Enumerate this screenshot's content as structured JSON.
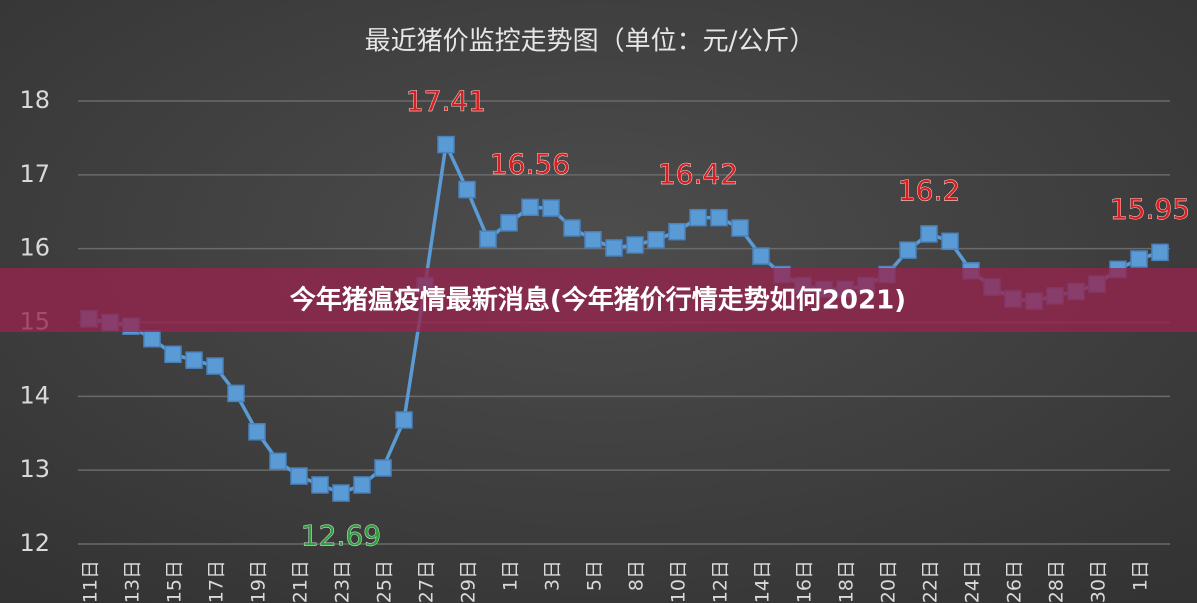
{
  "chart_data": {
    "type": "line",
    "title": "最近猪价监控走势图（单位：元/公斤）",
    "banner": "今年猪瘟疫情最新消息(今年猪价行情走势如何2021)",
    "categories": [
      "11日",
      null,
      "13日",
      null,
      "15日",
      null,
      "17日",
      null,
      "19日",
      null,
      "21日",
      null,
      "23日",
      null,
      "25日",
      null,
      "27日",
      null,
      "29日",
      null,
      "1日",
      null,
      "3日",
      null,
      "5日",
      null,
      "8日",
      null,
      "10日",
      null,
      "12日",
      null,
      "14日",
      null,
      "16日",
      null,
      "18日",
      null,
      "20日",
      null,
      "22日",
      null,
      "24日",
      null,
      "26日",
      null,
      "28日",
      null,
      "30日",
      null,
      "1日",
      null
    ],
    "values": [
      15.05,
      15.0,
      14.95,
      14.78,
      14.57,
      14.49,
      14.41,
      14.04,
      13.52,
      13.12,
      12.92,
      12.8,
      12.69,
      12.8,
      13.03,
      13.68,
      15.5,
      17.41,
      16.8,
      16.13,
      16.35,
      16.56,
      16.55,
      16.28,
      16.12,
      16.01,
      16.05,
      16.12,
      16.23,
      16.42,
      16.42,
      16.28,
      15.9,
      15.65,
      15.5,
      15.45,
      15.45,
      15.5,
      15.65,
      15.98,
      16.2,
      16.1,
      15.7,
      15.48,
      15.32,
      15.29,
      15.36,
      15.42,
      15.52,
      15.72,
      15.86,
      15.95
    ],
    "value_labels": [
      null,
      null,
      null,
      null,
      null,
      null,
      null,
      null,
      null,
      null,
      null,
      null,
      "12.69",
      null,
      null,
      null,
      null,
      "17.41",
      null,
      null,
      null,
      "16.56",
      null,
      null,
      null,
      null,
      null,
      null,
      null,
      "16.42",
      null,
      null,
      null,
      null,
      null,
      null,
      null,
      null,
      null,
      null,
      "16.2",
      null,
      null,
      null,
      null,
      null,
      null,
      null,
      null,
      null,
      null,
      "15.95"
    ],
    "value_label_colors": [
      null,
      null,
      null,
      null,
      null,
      null,
      null,
      null,
      null,
      null,
      null,
      null,
      "#2e9e3e",
      null,
      null,
      null,
      null,
      "#d42020",
      null,
      null,
      null,
      "#d42020",
      null,
      null,
      null,
      null,
      null,
      null,
      null,
      "#d42020",
      null,
      null,
      null,
      null,
      null,
      null,
      null,
      null,
      null,
      null,
      "#d42020",
      null,
      null,
      null,
      null,
      null,
      null,
      null,
      null,
      null,
      null,
      "#d42020"
    ],
    "color": "#5b9bd5",
    "ylim": [
      12,
      18
    ],
    "yticks": [
      12,
      13,
      14,
      15,
      16,
      17,
      18
    ],
    "grid": true
  }
}
